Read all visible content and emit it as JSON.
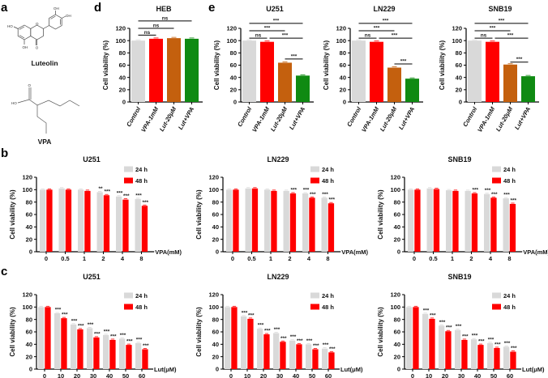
{
  "panel_labels": {
    "a": "a",
    "b": "b",
    "c": "c",
    "d": "d",
    "e": "e"
  },
  "structures": {
    "luteolin_name": "Luteolin",
    "vpa_name": "VPA",
    "luteolin_atoms": {
      "oh_b3": "OH",
      "oh_b4": "OH",
      "ho_a": "HO",
      "oh_a5": "OH",
      "o_ring": "O",
      "o_keto": "O"
    },
    "vpa_atoms": {
      "o": "O",
      "ho": "HO"
    }
  },
  "chart_data": [
    {
      "panel": "d",
      "type": "bar",
      "title": "HEB",
      "ylabel": "Cell viability (%)",
      "ylim": [
        0,
        120
      ],
      "yticks": [
        0,
        20,
        40,
        60,
        80,
        100,
        120
      ],
      "categories": [
        "Control",
        "VPA-1mM",
        "Lut-20μM",
        "Lut+VPA"
      ],
      "values": [
        100,
        103,
        104,
        103
      ],
      "colors": [
        "#d9d9d9",
        "#ff0000",
        "#c4600e",
        "#0f8a12"
      ],
      "brackets": [
        {
          "from": 0,
          "to": 1,
          "level": 109,
          "label": "ns"
        },
        {
          "from": 0,
          "to": 2,
          "level": 120,
          "label": "ns"
        },
        {
          "from": 0,
          "to": 3,
          "level": 132,
          "label": "ns"
        }
      ]
    },
    {
      "panel": "e",
      "type": "bar",
      "title": "U251",
      "ylabel": "Cell viability (%)",
      "ylim": [
        0,
        120
      ],
      "yticks": [
        0,
        20,
        40,
        60,
        80,
        100,
        120
      ],
      "categories": [
        "Control",
        "VPA-1mM",
        "Lut-20μM",
        "Lut+VPA"
      ],
      "values": [
        100,
        98,
        64,
        43
      ],
      "colors": [
        "#d9d9d9",
        "#ff0000",
        "#c4600e",
        "#0f8a12"
      ],
      "brackets": [
        {
          "from": 0,
          "to": 1,
          "level": 104,
          "label": "ns"
        },
        {
          "from": 1,
          "to": 3,
          "level": 104,
          "label": "***"
        },
        {
          "from": 0,
          "to": 2,
          "level": 116,
          "label": "***"
        },
        {
          "from": 0,
          "to": 3,
          "level": 128,
          "label": "***"
        },
        {
          "from": 2,
          "to": 3,
          "level": 70,
          "label": "***"
        }
      ]
    },
    {
      "panel": "e",
      "type": "bar",
      "title": "LN229",
      "ylabel": "Cell viability (%)",
      "ylim": [
        0,
        120
      ],
      "yticks": [
        0,
        20,
        40,
        60,
        80,
        100,
        120
      ],
      "categories": [
        "Control",
        "VPA-1mM",
        "Lut-20μM",
        "Lut+VPA"
      ],
      "values": [
        100,
        98,
        56,
        38
      ],
      "colors": [
        "#d9d9d9",
        "#ff0000",
        "#c4600e",
        "#0f8a12"
      ],
      "brackets": [
        {
          "from": 0,
          "to": 1,
          "level": 104,
          "label": "ns"
        },
        {
          "from": 1,
          "to": 3,
          "level": 104,
          "label": "***"
        },
        {
          "from": 0,
          "to": 2,
          "level": 116,
          "label": "***"
        },
        {
          "from": 0,
          "to": 3,
          "level": 128,
          "label": "***"
        },
        {
          "from": 2,
          "to": 3,
          "level": 62,
          "label": "***"
        }
      ]
    },
    {
      "panel": "e",
      "type": "bar",
      "title": "SNB19",
      "ylabel": "Cell viability (%)",
      "ylim": [
        0,
        120
      ],
      "yticks": [
        0,
        20,
        40,
        60,
        80,
        100,
        120
      ],
      "categories": [
        "Control",
        "VPA-1mM",
        "Lut-20μM",
        "Lut+VPA"
      ],
      "values": [
        100,
        98,
        61,
        42
      ],
      "colors": [
        "#d9d9d9",
        "#ff0000",
        "#c4600e",
        "#0f8a12"
      ],
      "brackets": [
        {
          "from": 0,
          "to": 1,
          "level": 104,
          "label": "ns"
        },
        {
          "from": 1,
          "to": 3,
          "level": 104,
          "label": "***"
        },
        {
          "from": 0,
          "to": 2,
          "level": 116,
          "label": "***"
        },
        {
          "from": 0,
          "to": 3,
          "level": 128,
          "label": "***"
        },
        {
          "from": 2,
          "to": 3,
          "level": 65,
          "label": "***"
        }
      ]
    },
    {
      "panel": "b",
      "type": "bar",
      "title": "U251",
      "ylabel": "Cell viability (%)",
      "xlabel": "VPA(mM)",
      "ylim": [
        0,
        120
      ],
      "yticks": [
        0,
        20,
        40,
        60,
        80,
        100,
        120
      ],
      "categories": [
        "0",
        "0.5",
        "1",
        "2",
        "4",
        "8"
      ],
      "legend": "top-right",
      "series": [
        {
          "name": "24 h",
          "color": "#d9d9d9",
          "values": [
            100,
            102,
            100,
            96,
            89,
            85
          ],
          "annotations": [
            "",
            "",
            "",
            "**",
            "***",
            "***"
          ]
        },
        {
          "name": "48 h",
          "color": "#ff0000",
          "values": [
            100,
            100,
            98,
            91,
            84,
            74
          ],
          "annotations": [
            "",
            "",
            "",
            "***",
            "***",
            "***"
          ]
        }
      ]
    },
    {
      "panel": "b",
      "type": "bar",
      "title": "LN229",
      "ylabel": "Cell viability (%)",
      "xlabel": "VPA(mM)",
      "ylim": [
        0,
        120
      ],
      "yticks": [
        0,
        20,
        40,
        60,
        80,
        100,
        120
      ],
      "categories": [
        "0",
        "0.5",
        "1",
        "2",
        "4",
        "8"
      ],
      "legend": "top-right",
      "series": [
        {
          "name": "24 h",
          "color": "#d9d9d9",
          "values": [
            100,
            102,
            100,
            98,
            94,
            87
          ],
          "annotations": [
            "",
            "",
            "",
            "",
            "***",
            "***"
          ]
        },
        {
          "name": "48 h",
          "color": "#ff0000",
          "values": [
            100,
            102,
            98,
            94,
            87,
            78
          ],
          "annotations": [
            "",
            "",
            "",
            "***",
            "***",
            "***"
          ]
        }
      ]
    },
    {
      "panel": "b",
      "type": "bar",
      "title": "SNB19",
      "ylabel": "Cell viability (%)",
      "xlabel": "VPA(mM)",
      "ylim": [
        0,
        120
      ],
      "yticks": [
        0,
        20,
        40,
        60,
        80,
        100,
        120
      ],
      "categories": [
        "0",
        "0.5",
        "1",
        "2",
        "4",
        "8"
      ],
      "legend": "top-right",
      "series": [
        {
          "name": "24 h",
          "color": "#d9d9d9",
          "values": [
            100,
            102,
            99,
            98,
            93,
            86
          ],
          "annotations": [
            "",
            "",
            "",
            "",
            "***",
            "***"
          ]
        },
        {
          "name": "48 h",
          "color": "#ff0000",
          "values": [
            100,
            101,
            98,
            94,
            87,
            77
          ],
          "annotations": [
            "",
            "",
            "",
            "***",
            "***",
            "***"
          ]
        }
      ]
    },
    {
      "panel": "c",
      "type": "bar",
      "title": "U251",
      "ylabel": "Cell viability (%)",
      "xlabel": "Lut(μM)",
      "ylim": [
        0,
        120
      ],
      "yticks": [
        0,
        20,
        40,
        60,
        80,
        100,
        120
      ],
      "categories": [
        "0",
        "10",
        "20",
        "30",
        "40",
        "50",
        "60"
      ],
      "legend": "top-right",
      "series": [
        {
          "name": "24 h",
          "color": "#d9d9d9",
          "values": [
            100,
            90,
            72,
            66,
            55,
            49,
            42
          ],
          "annotations": [
            "",
            "***",
            "***",
            "***",
            "***",
            "***",
            "***"
          ]
        },
        {
          "name": "48 h",
          "color": "#ff0000",
          "values": [
            100,
            82,
            64,
            51,
            47,
            39,
            32
          ],
          "annotations": [
            "",
            "***",
            "***",
            "***",
            "***",
            "***",
            "***"
          ]
        }
      ]
    },
    {
      "panel": "c",
      "type": "bar",
      "title": "LN229",
      "ylabel": "Cell viability (%)",
      "xlabel": "Lut(μM)",
      "ylim": [
        0,
        120
      ],
      "yticks": [
        0,
        20,
        40,
        60,
        80,
        100,
        120
      ],
      "categories": [
        "0",
        "10",
        "20",
        "30",
        "40",
        "50",
        "60"
      ],
      "legend": "top-right",
      "series": [
        {
          "name": "24 h",
          "color": "#d9d9d9",
          "values": [
            100,
            85,
            65,
            58,
            46,
            40,
            33
          ],
          "annotations": [
            "",
            "***",
            "***",
            "***",
            "***",
            "***",
            "***"
          ]
        },
        {
          "name": "48 h",
          "color": "#ff0000",
          "values": [
            100,
            81,
            56,
            44,
            40,
            32,
            27
          ],
          "annotations": [
            "",
            "***",
            "***",
            "***",
            "***",
            "***",
            "***"
          ]
        }
      ]
    },
    {
      "panel": "c",
      "type": "bar",
      "title": "SNB19",
      "ylabel": "Cell viability (%)",
      "xlabel": "Lut(μM)",
      "ylim": [
        0,
        120
      ],
      "yticks": [
        0,
        20,
        40,
        60,
        80,
        100,
        120
      ],
      "categories": [
        "0",
        "10",
        "20",
        "30",
        "40",
        "50",
        "60"
      ],
      "legend": "top-right",
      "series": [
        {
          "name": "24 h",
          "color": "#d9d9d9",
          "values": [
            100,
            89,
            70,
            63,
            48,
            42,
            36
          ],
          "annotations": [
            "",
            "***",
            "***",
            "***",
            "***",
            "***",
            "***"
          ]
        },
        {
          "name": "48 h",
          "color": "#ff0000",
          "values": [
            100,
            81,
            61,
            47,
            39,
            34,
            28
          ],
          "annotations": [
            "",
            "***",
            "***",
            "***",
            "***",
            "***",
            "***"
          ]
        }
      ]
    }
  ]
}
